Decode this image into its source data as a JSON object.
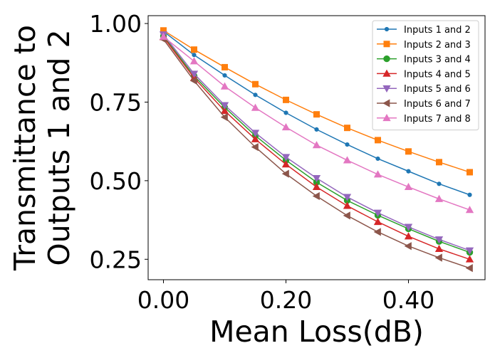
{
  "chart_data": {
    "type": "line",
    "title": "",
    "xlabel": "Mean Loss(dB)",
    "ylabel_lines": [
      "Transmittance to",
      "Outputs 1 and 2"
    ],
    "xlim": [
      -0.025,
      0.525
    ],
    "ylim": [
      0.185,
      1.025
    ],
    "xticks": [
      0.0,
      0.2,
      0.4
    ],
    "xtick_labels": [
      "0.00",
      "0.20",
      "0.40"
    ],
    "yticks": [
      0.25,
      0.5,
      0.75,
      1.0
    ],
    "ytick_labels": [
      "0.25",
      "0.50",
      "0.75",
      "1.00"
    ],
    "grid": false,
    "legend_position": "top-right",
    "x": [
      0.0,
      0.05,
      0.1,
      0.15,
      0.2,
      0.25,
      0.3,
      0.35,
      0.4,
      0.45,
      0.5
    ],
    "series": [
      {
        "name": "Inputs 1 and 2",
        "color": "#1f77b4",
        "marker": "point",
        "values": [
          0.975,
          0.9,
          0.835,
          0.773,
          0.716,
          0.663,
          0.615,
          0.57,
          0.53,
          0.49,
          0.455
        ]
      },
      {
        "name": "Inputs 2 and 3",
        "color": "#ff7f0e",
        "marker": "square",
        "values": [
          0.978,
          0.917,
          0.861,
          0.807,
          0.757,
          0.711,
          0.668,
          0.629,
          0.593,
          0.559,
          0.527
        ]
      },
      {
        "name": "Inputs 3 and 4",
        "color": "#2ca02c",
        "marker": "circle",
        "values": [
          0.96,
          0.833,
          0.733,
          0.643,
          0.565,
          0.495,
          0.437,
          0.39,
          0.347,
          0.307,
          0.272
        ]
      },
      {
        "name": "Inputs 4 and 5",
        "color": "#d62728",
        "marker": "triangle-up",
        "values": [
          0.957,
          0.827,
          0.722,
          0.632,
          0.552,
          0.48,
          0.42,
          0.369,
          0.323,
          0.283,
          0.25
        ]
      },
      {
        "name": "Inputs 5 and 6",
        "color": "#9467bd",
        "marker": "triangle-down",
        "values": [
          0.965,
          0.84,
          0.74,
          0.652,
          0.575,
          0.508,
          0.448,
          0.398,
          0.353,
          0.313,
          0.278
        ]
      },
      {
        "name": "Inputs 6 and 7",
        "color": "#8c564b",
        "marker": "triangle-left",
        "values": [
          0.95,
          0.818,
          0.702,
          0.607,
          0.522,
          0.451,
          0.389,
          0.337,
          0.292,
          0.255,
          0.222
        ]
      },
      {
        "name": "Inputs 7 and 8",
        "color": "#e377c2",
        "marker": "triangle-up",
        "values": [
          0.958,
          0.88,
          0.8,
          0.732,
          0.67,
          0.613,
          0.565,
          0.52,
          0.48,
          0.442,
          0.407
        ]
      }
    ]
  }
}
